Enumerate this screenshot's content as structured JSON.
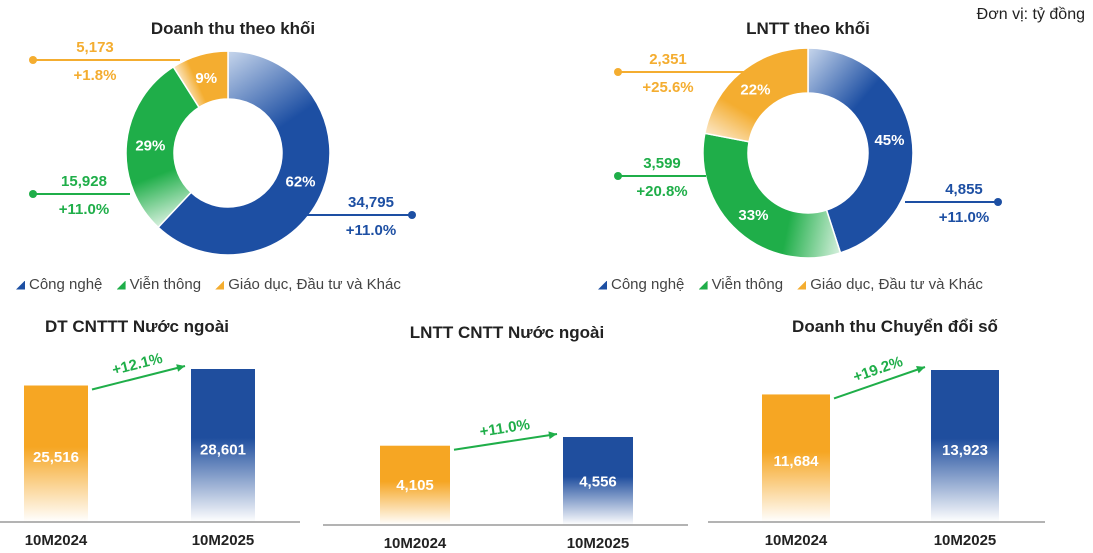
{
  "unit_note": "Đơn vị: tỷ đồng",
  "legend": [
    "Công nghệ",
    "Viễn thông",
    "Giáo dục, Đầu tư và Khác"
  ],
  "colors": {
    "tech": "#1d4fa3",
    "tech_light": "#c7d6ec",
    "telecom": "#1fae49",
    "telecom_light": "#d7f0de",
    "edu": "#f4ad30",
    "edu_light": "#fbe8c8",
    "bar_orange": "#f6a623",
    "bar_blue": "#1f4e9e",
    "growth": "#1fae49",
    "axis": "#9a9a9a"
  },
  "chart_data": [
    {
      "type": "pie",
      "title": "Doanh thu theo khối",
      "slices": [
        {
          "label": "Công nghệ",
          "percent": 62,
          "value": "34,795",
          "growth": "+11.0%"
        },
        {
          "label": "Viễn thông",
          "percent": 29,
          "value": "15,928",
          "growth": "+11.0%"
        },
        {
          "label": "Giáo dục, Đầu tư và Khác",
          "percent": 9,
          "value": "5,173",
          "growth": "+1.8%"
        }
      ]
    },
    {
      "type": "pie",
      "title": "LNTT theo khối",
      "slices": [
        {
          "label": "Công nghệ",
          "percent": 45,
          "value": "4,855",
          "growth": "+11.0%"
        },
        {
          "label": "Viễn thông",
          "percent": 33,
          "value": "3,599",
          "growth": "+20.8%"
        },
        {
          "label": "Giáo dục, Đầu tư và Khác",
          "percent": 22,
          "value": "2,351",
          "growth": "+25.6%"
        }
      ]
    },
    {
      "type": "bar",
      "title": "DT CNTTT Nước ngoài",
      "categories": [
        "10M2024",
        "10M2025"
      ],
      "values": [
        25516,
        28601
      ],
      "value_labels": [
        "25,516",
        "28,601"
      ],
      "growth": "+12.1%"
    },
    {
      "type": "bar",
      "title": "LNTT CNTT Nước ngoài",
      "categories": [
        "10M2024",
        "10M2025"
      ],
      "values": [
        4105,
        4556
      ],
      "value_labels": [
        "4,105",
        "4,556"
      ],
      "growth": "+11.0%"
    },
    {
      "type": "bar",
      "title": "Doanh thu Chuyển đổi số",
      "categories": [
        "10M2024",
        "10M2025"
      ],
      "values": [
        11684,
        13923
      ],
      "value_labels": [
        "11,684",
        "13,923"
      ],
      "growth": "+19.2%"
    }
  ]
}
